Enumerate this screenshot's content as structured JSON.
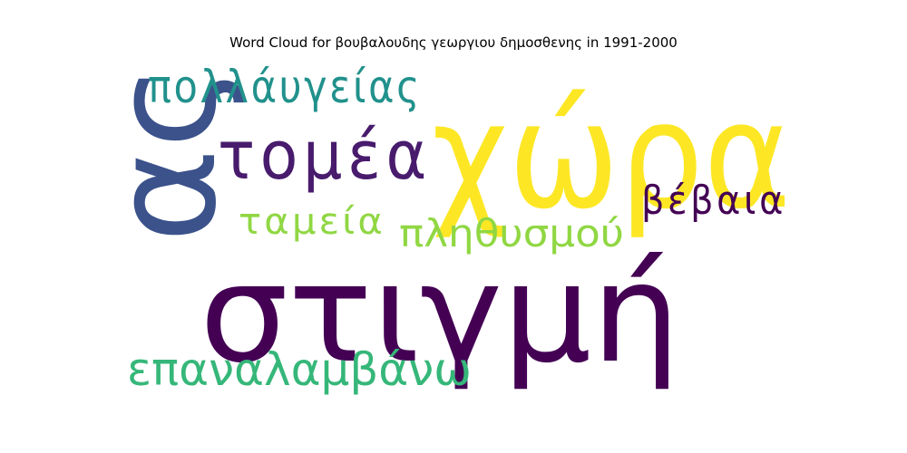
{
  "chart_data": {
    "type": "wordcloud",
    "title": "Word Cloud for βουβαλουδης γεωργιου δημοσθενης in 1991-2000",
    "words": [
      {
        "text": "χώρα",
        "color": "#fde725",
        "rank": 1
      },
      {
        "text": "στιγμή",
        "color": "#440154",
        "rank": 2
      },
      {
        "text": "ας",
        "color": "#3b528b",
        "rank": 3
      },
      {
        "text": "τομέα",
        "color": "#481b6d",
        "rank": 4
      },
      {
        "text": "πολλάυγείας",
        "color": "#21918c",
        "rank": 5
      },
      {
        "text": "επαναλαμβάνω",
        "color": "#35b779",
        "rank": 6
      },
      {
        "text": "βέβαια",
        "color": "#440154",
        "rank": 7
      },
      {
        "text": "πληθυσμού",
        "color": "#90d743",
        "rank": 8
      },
      {
        "text": "ταμεία",
        "color": "#90d743",
        "rank": 9
      }
    ]
  }
}
